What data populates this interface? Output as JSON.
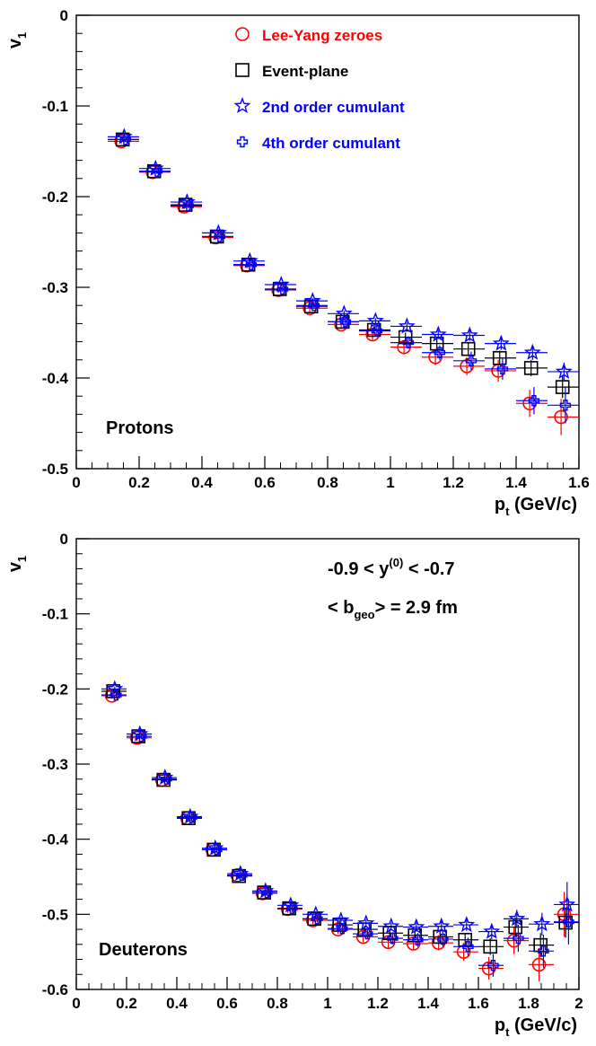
{
  "chart_data": [
    {
      "type": "scatter",
      "panel_label": "Protons",
      "title": "",
      "ylabel": "v",
      "ylabel_sub": "1",
      "xlabel": "p",
      "xlabel_sub": "t",
      "xlabel_unit": " (GeV/c)",
      "xlim": [
        0,
        1.6
      ],
      "ylim": [
        -0.5,
        0
      ],
      "xticks": [
        0,
        0.2,
        0.4,
        0.6,
        0.8,
        1,
        1.2,
        1.4,
        1.6
      ],
      "xtick_labels": [
        "0",
        "0.2",
        "0.4",
        "0.6",
        "0.8",
        "1",
        "1.2",
        "1.4",
        "1.6"
      ],
      "yticks": [
        0,
        -0.1,
        -0.2,
        -0.3,
        -0.4,
        -0.5
      ],
      "ytick_labels": [
        "0",
        "-0.1",
        "-0.2",
        "-0.3",
        "-0.4",
        "-0.5"
      ],
      "grid": false,
      "legend_position": "top-center",
      "x": [
        0.15,
        0.25,
        0.35,
        0.45,
        0.55,
        0.65,
        0.75,
        0.85,
        0.95,
        1.05,
        1.15,
        1.25,
        1.35,
        1.45,
        1.55
      ],
      "x_halfwidth": 0.05,
      "series": [
        {
          "name": "Lee-Yang zeroes",
          "marker": "circle",
          "color": "#ff0000",
          "values": [
            -0.139,
            -0.173,
            -0.211,
            -0.245,
            -0.276,
            -0.303,
            -0.323,
            -0.341,
            -0.352,
            -0.366,
            -0.377,
            -0.387,
            -0.392,
            -0.428,
            -0.443
          ],
          "errors": [
            0.003,
            0.003,
            0.003,
            0.003,
            0.003,
            0.003,
            0.004,
            0.005,
            0.006,
            0.008,
            0.009,
            0.01,
            0.012,
            0.015,
            0.02
          ]
        },
        {
          "name": "Event-plane",
          "marker": "square",
          "color": "#000000",
          "values": [
            -0.137,
            -0.172,
            -0.209,
            -0.244,
            -0.275,
            -0.302,
            -0.321,
            -0.338,
            -0.347,
            -0.355,
            -0.362,
            -0.368,
            -0.378,
            -0.389,
            -0.41
          ],
          "errors": [
            0.002,
            0.002,
            0.002,
            0.002,
            0.002,
            0.002,
            0.003,
            0.003,
            0.004,
            0.005,
            0.006,
            0.007,
            0.008,
            0.009,
            0.012
          ]
        },
        {
          "name": "2nd order cumulant",
          "marker": "star",
          "color": "#0000ff",
          "values": [
            -0.134,
            -0.169,
            -0.206,
            -0.24,
            -0.271,
            -0.297,
            -0.315,
            -0.329,
            -0.337,
            -0.343,
            -0.352,
            -0.353,
            -0.362,
            -0.372,
            -0.393
          ],
          "errors": [
            0.002,
            0.002,
            0.002,
            0.002,
            0.002,
            0.002,
            0.003,
            0.003,
            0.003,
            0.004,
            0.005,
            0.006,
            0.007,
            0.008,
            0.01
          ]
        },
        {
          "name": "4th order cumulant",
          "marker": "cross",
          "color": "#0000ff",
          "values": [
            -0.137,
            -0.172,
            -0.21,
            -0.244,
            -0.275,
            -0.302,
            -0.32,
            -0.338,
            -0.348,
            -0.361,
            -0.372,
            -0.381,
            -0.39,
            -0.425,
            -0.43
          ],
          "errors": [
            0.003,
            0.003,
            0.003,
            0.003,
            0.003,
            0.003,
            0.004,
            0.005,
            0.006,
            0.007,
            0.008,
            0.01,
            0.012,
            0.015,
            0.02
          ]
        }
      ],
      "legend_entries": [
        {
          "label": "Lee-Yang zeroes",
          "marker": "circle",
          "color": "#ff0000"
        },
        {
          "label": "Event-plane",
          "marker": "square",
          "color": "#000000"
        },
        {
          "label": "2nd order cumulant",
          "marker": "star",
          "color": "#0000ff"
        },
        {
          "label": "4th order cumulant",
          "marker": "cross",
          "color": "#0000ff"
        }
      ]
    },
    {
      "type": "scatter",
      "panel_label": "Deuterons",
      "title": "",
      "ylabel": "v",
      "ylabel_sub": "1",
      "xlabel": "p",
      "xlabel_sub": "t",
      "xlabel_unit": " (GeV/c)",
      "annotation_1": {
        "pre": "-0.9 < y",
        "sup": "(0)",
        "post": " < -0.7"
      },
      "annotation_2": {
        "pre": "< b",
        "sub": "geo",
        "post": "> = 2.9 fm"
      },
      "xlim": [
        0,
        2
      ],
      "ylim": [
        -0.6,
        0
      ],
      "xticks": [
        0,
        0.2,
        0.4,
        0.6,
        0.8,
        1,
        1.2,
        1.4,
        1.6,
        1.8,
        2
      ],
      "xtick_labels": [
        "0",
        "0.2",
        "0.4",
        "0.6",
        "0.8",
        "1",
        "1.2",
        "1.4",
        "1.6",
        "1.8",
        "2"
      ],
      "yticks": [
        0,
        -0.1,
        -0.2,
        -0.3,
        -0.4,
        -0.5,
        -0.6
      ],
      "ytick_labels": [
        "0",
        "-0.1",
        "-0.2",
        "-0.3",
        "-0.4",
        "-0.5",
        "-0.6"
      ],
      "grid": false,
      "x": [
        0.15,
        0.25,
        0.35,
        0.45,
        0.55,
        0.65,
        0.75,
        0.85,
        0.95,
        1.05,
        1.15,
        1.25,
        1.35,
        1.45,
        1.55,
        1.65,
        1.75,
        1.85,
        1.95
      ],
      "x_halfwidth": 0.05,
      "series": [
        {
          "name": "Lee-Yang zeroes",
          "marker": "circle",
          "color": "#ff0000",
          "values": [
            -0.209,
            -0.265,
            -0.321,
            -0.372,
            -0.414,
            -0.448,
            -0.472,
            -0.493,
            -0.508,
            -0.52,
            -0.53,
            -0.537,
            -0.539,
            -0.538,
            -0.55,
            -0.572,
            -0.535,
            -0.567,
            -0.5
          ],
          "errors": [
            0.004,
            0.004,
            0.004,
            0.004,
            0.004,
            0.004,
            0.004,
            0.005,
            0.005,
            0.006,
            0.007,
            0.008,
            0.009,
            0.01,
            0.012,
            0.015,
            0.018,
            0.022,
            0.03
          ]
        },
        {
          "name": "Event-plane",
          "marker": "square",
          "color": "#000000",
          "values": [
            -0.203,
            -0.263,
            -0.321,
            -0.372,
            -0.414,
            -0.449,
            -0.471,
            -0.492,
            -0.506,
            -0.514,
            -0.52,
            -0.525,
            -0.528,
            -0.53,
            -0.534,
            -0.543,
            -0.517,
            -0.541,
            -0.511
          ],
          "errors": [
            0.003,
            0.003,
            0.003,
            0.003,
            0.003,
            0.003,
            0.003,
            0.004,
            0.004,
            0.005,
            0.005,
            0.006,
            0.007,
            0.008,
            0.009,
            0.011,
            0.013,
            0.016,
            0.02
          ]
        },
        {
          "name": "2nd order cumulant",
          "marker": "star",
          "color": "#0000ff",
          "values": [
            -0.2,
            -0.26,
            -0.318,
            -0.37,
            -0.412,
            -0.446,
            -0.469,
            -0.488,
            -0.5,
            -0.508,
            -0.512,
            -0.516,
            -0.517,
            -0.516,
            -0.514,
            -0.523,
            -0.506,
            -0.513,
            -0.487
          ],
          "errors": [
            0.003,
            0.003,
            0.003,
            0.003,
            0.003,
            0.003,
            0.003,
            0.004,
            0.004,
            0.004,
            0.005,
            0.005,
            0.006,
            0.007,
            0.008,
            0.01,
            0.012,
            0.015,
            0.03
          ]
        },
        {
          "name": "4th order cumulant",
          "marker": "cross",
          "color": "#0000ff",
          "values": [
            -0.208,
            -0.263,
            -0.32,
            -0.371,
            -0.414,
            -0.448,
            -0.471,
            -0.492,
            -0.506,
            -0.519,
            -0.526,
            -0.532,
            -0.534,
            -0.533,
            -0.543,
            -0.568,
            -0.532,
            -0.549,
            -0.51
          ],
          "errors": [
            0.004,
            0.004,
            0.004,
            0.004,
            0.004,
            0.004,
            0.004,
            0.005,
            0.005,
            0.006,
            0.007,
            0.008,
            0.009,
            0.01,
            0.012,
            0.015,
            0.018,
            0.022,
            0.03
          ]
        }
      ]
    }
  ]
}
